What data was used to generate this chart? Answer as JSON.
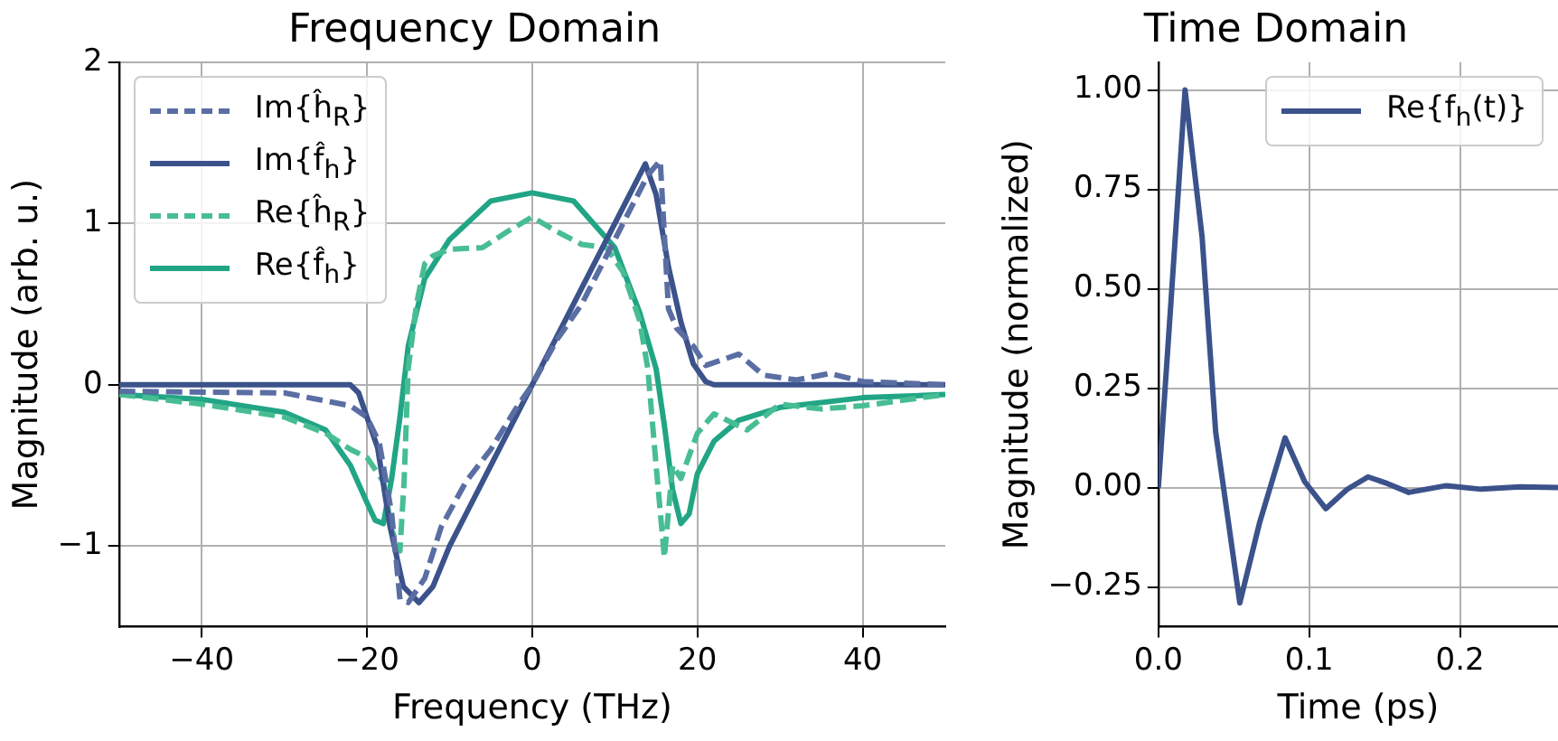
{
  "chart_data": [
    {
      "type": "line",
      "title": "Frequency Domain",
      "xlabel": "Frequency (THz)",
      "ylabel": "Magnitude (arb. u.)",
      "xlim": [
        -50,
        50
      ],
      "ylim": [
        -1.5,
        2
      ],
      "xticks": [
        {
          "value": -40,
          "label": "−40"
        },
        {
          "value": -20,
          "label": "−20"
        },
        0,
        20,
        40
      ],
      "yticks": [
        {
          "value": -1,
          "label": "−1"
        },
        0,
        1,
        2
      ],
      "grid": true,
      "legend": "top left",
      "series": [
        {
          "name": "Im{ĥ$_{R}$}",
          "color": "#5a6ea3",
          "line_style": "dashed",
          "x": [
            -50,
            -30,
            -22,
            -20,
            -18.5,
            -17,
            -16,
            -15,
            -13,
            -11,
            -8,
            -5,
            -2,
            0,
            3,
            6,
            9,
            12,
            14,
            15.5,
            16.5,
            17.5,
            19.5,
            21,
            25,
            28,
            32,
            36,
            40,
            50
          ],
          "values": [
            -0.04,
            -0.05,
            -0.13,
            -0.2,
            -0.36,
            -0.8,
            -1.33,
            -1.35,
            -1.2,
            -0.88,
            -0.6,
            -0.4,
            -0.15,
            0,
            0.28,
            0.5,
            0.8,
            1.1,
            1.3,
            1.39,
            0.47,
            0.35,
            0.24,
            0.12,
            0.19,
            0.06,
            0.03,
            0.07,
            0.02,
            0
          ]
        },
        {
          "name": "Im{f̂$_{h}$}",
          "color": "#3b528b",
          "line_style": "solid",
          "x": [
            -50,
            -22,
            -21,
            -20,
            -18.7,
            -17.2,
            -15.6,
            -13.7,
            -12,
            -10,
            -5,
            0,
            5,
            10,
            12,
            13.7,
            15,
            16.5,
            18,
            19.5,
            21,
            22,
            50
          ],
          "values": [
            0,
            0,
            -0.05,
            -0.2,
            -0.39,
            -0.88,
            -1.25,
            -1.35,
            -1.25,
            -1.0,
            -0.5,
            0,
            0.5,
            1.0,
            1.2,
            1.37,
            1.18,
            0.73,
            0.39,
            0.13,
            0.02,
            0,
            0
          ]
        },
        {
          "name": "Re{ĥ$_{R}$}",
          "color": "#48bd94",
          "line_style": "dashed",
          "x": [
            -50,
            -40,
            -30,
            -25,
            -22,
            -20,
            -18,
            -17,
            -16,
            -15.5,
            -15,
            -14,
            -13,
            -12,
            -10,
            -6,
            -3,
            0,
            3,
            6,
            9,
            11,
            13,
            14,
            15,
            16,
            17,
            18,
            20,
            22,
            26,
            30,
            35,
            40,
            50
          ],
          "values": [
            -0.06,
            -0.12,
            -0.2,
            -0.3,
            -0.4,
            -0.45,
            -0.6,
            -0.9,
            -1.03,
            -0.6,
            0.1,
            0.5,
            0.75,
            0.8,
            0.84,
            0.85,
            0.95,
            1.04,
            0.95,
            0.87,
            0.85,
            0.7,
            0.4,
            0.1,
            -0.5,
            -1.07,
            -0.5,
            -0.58,
            -0.3,
            -0.18,
            -0.28,
            -0.12,
            -0.15,
            -0.13,
            -0.06
          ]
        },
        {
          "name": "Re{f̂$_{h}$}",
          "color": "#21a585",
          "line_style": "solid",
          "x": [
            -50,
            -40,
            -30,
            -25,
            -22,
            -20,
            -19,
            -18,
            -17,
            -16,
            -15,
            -13,
            -10,
            -5,
            0,
            5,
            10,
            13,
            15,
            16,
            17,
            18,
            19,
            20,
            22,
            25,
            30,
            40,
            50
          ],
          "values": [
            -0.06,
            -0.09,
            -0.17,
            -0.28,
            -0.5,
            -0.73,
            -0.84,
            -0.86,
            -0.58,
            -0.2,
            0.24,
            0.66,
            0.9,
            1.14,
            1.19,
            1.14,
            0.85,
            0.45,
            0.1,
            -0.25,
            -0.65,
            -0.86,
            -0.8,
            -0.55,
            -0.35,
            -0.22,
            -0.14,
            -0.08,
            -0.06
          ]
        }
      ]
    },
    {
      "type": "line",
      "title": "Time Domain",
      "xlabel": "Time (ps)",
      "ylabel": "Magnitude (normalized)",
      "xlim": [
        0,
        0.265
      ],
      "ylim": [
        -0.35,
        1.07
      ],
      "xticks": [
        {
          "value": 0,
          "label": "0.0"
        },
        0.1,
        0.2
      ],
      "yticks": [
        {
          "value": -0.25,
          "label": "−0.25"
        },
        {
          "value": 0,
          "label": "0.00"
        },
        {
          "value": 0.25,
          "label": "0.25"
        },
        {
          "value": 0.5,
          "label": "0.50"
        },
        {
          "value": 0.75,
          "label": "0.75"
        },
        {
          "value": 1,
          "label": "1.00"
        }
      ],
      "grid": true,
      "legend": "top right",
      "series": [
        {
          "name": "Re{f$_{h}$(t)}",
          "color": "#3b528b",
          "line_style": "solid",
          "x": [
            0,
            0.0084,
            0.0177,
            0.029,
            0.038,
            0.054,
            0.067,
            0.084,
            0.097,
            0.111,
            0.125,
            0.139,
            0.152,
            0.166,
            0.191,
            0.214,
            0.24,
            0.265
          ],
          "values": [
            0,
            0.47,
            1.0,
            0.63,
            0.14,
            -0.29,
            -0.09,
            0.125,
            0.015,
            -0.053,
            -0.005,
            0.027,
            0.01,
            -0.012,
            0.005,
            -0.004,
            0.002,
            0
          ]
        }
      ]
    }
  ]
}
